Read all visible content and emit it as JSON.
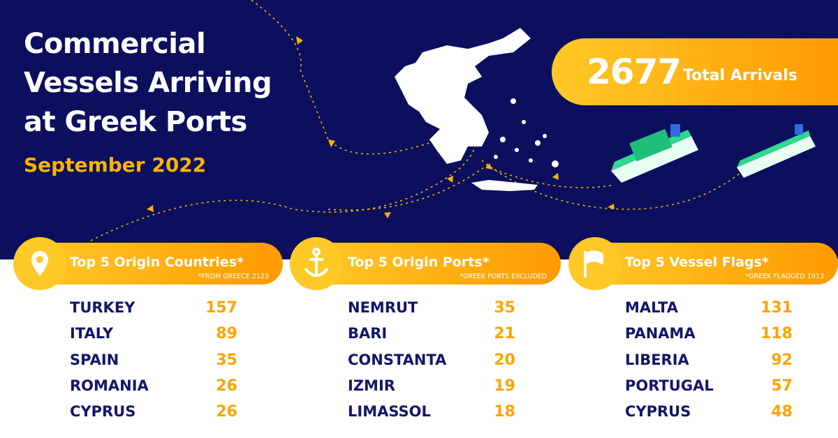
{
  "header": {
    "title_lines": [
      "Commercial",
      "Vessels Arriving",
      "at Greek Ports"
    ],
    "subtitle": "September 2022"
  },
  "total": {
    "value": 2677,
    "label": "Total Arrivals"
  },
  "panels": [
    {
      "title": "Top 5 Origin Countries*",
      "note": "*FROM GREECE 2123",
      "rows": [
        [
          "TURKEY",
          157
        ],
        [
          "ITALY",
          89
        ],
        [
          "SPAIN",
          35
        ],
        [
          "ROMANIA",
          26
        ],
        [
          "CYPRUS",
          26
        ]
      ]
    },
    {
      "title": "Top 5 Origin Ports*",
      "note": "*GREEK PORTS EXCLUDED",
      "rows": [
        [
          "NEMRUT",
          35
        ],
        [
          "BARI",
          21
        ],
        [
          "CONSTANTA",
          20
        ],
        [
          "IZMIR",
          19
        ],
        [
          "LIMASSOL",
          18
        ]
      ]
    },
    {
      "title": "Top 5 Vessel Flags*",
      "note": "*GREEK FLAGGED 1913",
      "rows": [
        [
          "MALTA",
          131
        ],
        [
          "PANAMA",
          118
        ],
        [
          "LIBERIA",
          92
        ],
        [
          "PORTUGAL",
          57
        ],
        [
          "CYPRUS",
          48
        ]
      ]
    }
  ]
}
